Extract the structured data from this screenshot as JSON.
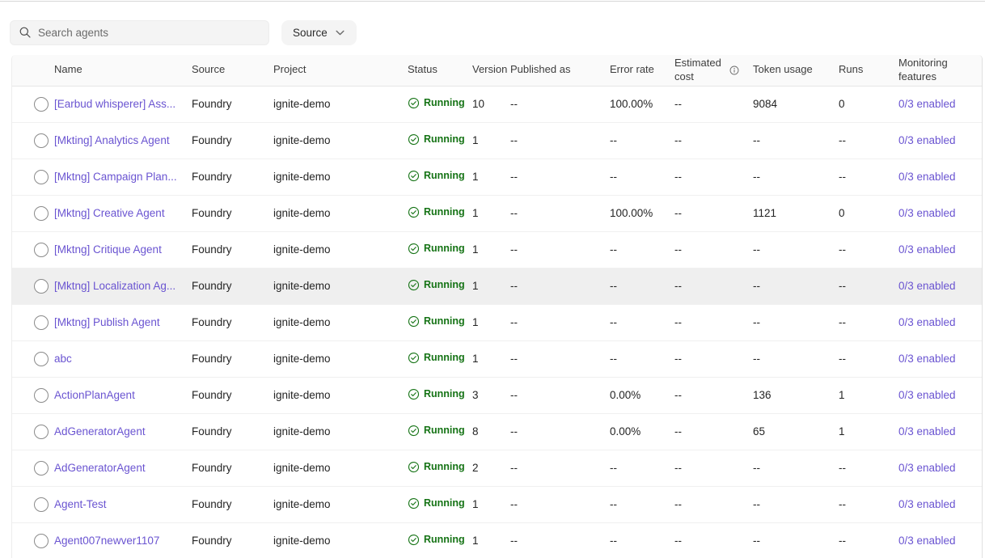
{
  "toolbar": {
    "search_placeholder": "Search agents",
    "source_button_label": "Source"
  },
  "icons": {
    "search": "magnifier",
    "source_chevron": "chevron-down",
    "estimated_cost_info": "info-circle",
    "status_running": "check-circle"
  },
  "colors": {
    "link_purple": "#6a54d1",
    "status_green": "#157315",
    "header_bg": "#fafafa",
    "highlight_row_bg": "#efefef"
  },
  "table": {
    "columns": [
      {
        "key": "name",
        "label": "Name"
      },
      {
        "key": "source",
        "label": "Source"
      },
      {
        "key": "project",
        "label": "Project"
      },
      {
        "key": "status",
        "label": "Status"
      },
      {
        "key": "version",
        "label": "Version"
      },
      {
        "key": "published",
        "label": "Published as"
      },
      {
        "key": "error_rate",
        "label": "Error rate"
      },
      {
        "key": "estimated_cost",
        "label": "Estimated cost"
      },
      {
        "key": "token_usage",
        "label": "Token usage"
      },
      {
        "key": "runs",
        "label": "Runs"
      },
      {
        "key": "monitoring",
        "label": "Monitoring features"
      }
    ],
    "rows": [
      {
        "name": "[Earbud whisperer] Ass...",
        "source": "Foundry",
        "project": "ignite-demo",
        "status": "Running",
        "version": "10",
        "published": "--",
        "error_rate": "100.00%",
        "estimated_cost": "--",
        "token_usage": "9084",
        "runs": "0",
        "monitoring": "0/3 enabled",
        "highlighted": false
      },
      {
        "name": "[Mkting] Analytics Agent",
        "source": "Foundry",
        "project": "ignite-demo",
        "status": "Running",
        "version": "1",
        "published": "--",
        "error_rate": "--",
        "estimated_cost": "--",
        "token_usage": "--",
        "runs": "--",
        "monitoring": "0/3 enabled",
        "highlighted": false
      },
      {
        "name": "[Mktng] Campaign Plan...",
        "source": "Foundry",
        "project": "ignite-demo",
        "status": "Running",
        "version": "1",
        "published": "--",
        "error_rate": "--",
        "estimated_cost": "--",
        "token_usage": "--",
        "runs": "--",
        "monitoring": "0/3 enabled",
        "highlighted": false
      },
      {
        "name": "[Mktng] Creative Agent",
        "source": "Foundry",
        "project": "ignite-demo",
        "status": "Running",
        "version": "1",
        "published": "--",
        "error_rate": "100.00%",
        "estimated_cost": "--",
        "token_usage": "1121",
        "runs": "0",
        "monitoring": "0/3 enabled",
        "highlighted": false
      },
      {
        "name": "[Mktng] Critique Agent",
        "source": "Foundry",
        "project": "ignite-demo",
        "status": "Running",
        "version": "1",
        "published": "--",
        "error_rate": "--",
        "estimated_cost": "--",
        "token_usage": "--",
        "runs": "--",
        "monitoring": "0/3 enabled",
        "highlighted": false
      },
      {
        "name": "[Mktng] Localization Ag...",
        "source": "Foundry",
        "project": "ignite-demo",
        "status": "Running",
        "version": "1",
        "published": "--",
        "error_rate": "--",
        "estimated_cost": "--",
        "token_usage": "--",
        "runs": "--",
        "monitoring": "0/3 enabled",
        "highlighted": true
      },
      {
        "name": "[Mktng] Publish Agent",
        "source": "Foundry",
        "project": "ignite-demo",
        "status": "Running",
        "version": "1",
        "published": "--",
        "error_rate": "--",
        "estimated_cost": "--",
        "token_usage": "--",
        "runs": "--",
        "monitoring": "0/3 enabled",
        "highlighted": false
      },
      {
        "name": "abc",
        "source": "Foundry",
        "project": "ignite-demo",
        "status": "Running",
        "version": "1",
        "published": "--",
        "error_rate": "--",
        "estimated_cost": "--",
        "token_usage": "--",
        "runs": "--",
        "monitoring": "0/3 enabled",
        "highlighted": false
      },
      {
        "name": "ActionPlanAgent",
        "source": "Foundry",
        "project": "ignite-demo",
        "status": "Running",
        "version": "3",
        "published": "--",
        "error_rate": "0.00%",
        "estimated_cost": "--",
        "token_usage": "136",
        "runs": "1",
        "monitoring": "0/3 enabled",
        "highlighted": false
      },
      {
        "name": "AdGeneratorAgent",
        "source": "Foundry",
        "project": "ignite-demo",
        "status": "Running",
        "version": "8",
        "published": "--",
        "error_rate": "0.00%",
        "estimated_cost": "--",
        "token_usage": "65",
        "runs": "1",
        "monitoring": "0/3 enabled",
        "highlighted": false
      },
      {
        "name": "AdGeneratorAgent",
        "source": "Foundry",
        "project": "ignite-demo",
        "status": "Running",
        "version": "2",
        "published": "--",
        "error_rate": "--",
        "estimated_cost": "--",
        "token_usage": "--",
        "runs": "--",
        "monitoring": "0/3 enabled",
        "highlighted": false
      },
      {
        "name": "Agent-Test",
        "source": "Foundry",
        "project": "ignite-demo",
        "status": "Running",
        "version": "1",
        "published": "--",
        "error_rate": "--",
        "estimated_cost": "--",
        "token_usage": "--",
        "runs": "--",
        "monitoring": "0/3 enabled",
        "highlighted": false
      },
      {
        "name": "Agent007newver1107",
        "source": "Foundry",
        "project": "ignite-demo",
        "status": "Running",
        "version": "1",
        "published": "--",
        "error_rate": "--",
        "estimated_cost": "--",
        "token_usage": "--",
        "runs": "--",
        "monitoring": "0/3 enabled",
        "highlighted": false
      }
    ]
  }
}
